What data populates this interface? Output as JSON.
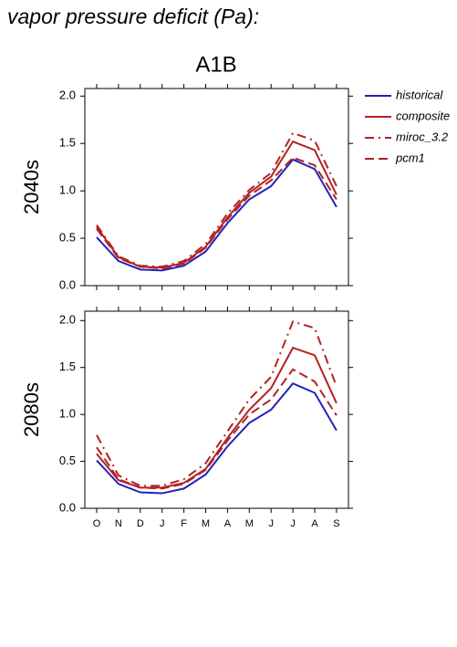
{
  "title": "vapor pressure deficit (Pa):",
  "subtitle": "A1B",
  "chart_data": [
    {
      "type": "line",
      "y_label": "2040s",
      "categories": [
        null,
        null,
        null,
        null,
        null,
        null,
        null,
        null,
        null,
        null,
        null,
        null
      ],
      "ylim": [
        0,
        2.08
      ],
      "yticks": [
        {
          "value": 0,
          "label": "0.0"
        },
        0.5,
        {
          "value": 1,
          "label": "1.0"
        },
        1.5,
        {
          "value": 2,
          "label": "2.0"
        }
      ],
      "legend": "right",
      "series": [
        {
          "name": "historical",
          "color": "#2222bb",
          "dash": "solid",
          "values": [
            0.51,
            0.26,
            0.17,
            0.16,
            0.21,
            0.36,
            0.66,
            0.91,
            1.05,
            1.33,
            1.23,
            0.83
          ]
        },
        {
          "name": "composite",
          "color": "#b22222",
          "dash": "solid",
          "values": [
            0.62,
            0.3,
            0.2,
            0.19,
            0.24,
            0.41,
            0.72,
            0.98,
            1.15,
            1.52,
            1.43,
            0.96
          ]
        },
        {
          "name": "miroc_3.2",
          "color": "#b22222",
          "dash": "dashdot",
          "values": [
            0.64,
            0.31,
            0.21,
            0.2,
            0.26,
            0.44,
            0.76,
            1.01,
            1.19,
            1.61,
            1.53,
            1.05
          ]
        },
        {
          "name": "pcm1",
          "color": "#b22222",
          "dash": "dashed",
          "values": [
            0.6,
            0.29,
            0.2,
            0.18,
            0.23,
            0.4,
            0.7,
            0.95,
            1.11,
            1.35,
            1.27,
            0.91
          ]
        }
      ]
    },
    {
      "type": "line",
      "y_label": "2080s",
      "categories": [
        "O",
        "N",
        "D",
        "J",
        "F",
        "M",
        "A",
        "M",
        "J",
        "J",
        "A",
        "S"
      ],
      "ylim": [
        0,
        2.1
      ],
      "yticks": [
        {
          "value": 0,
          "label": "0.0"
        },
        0.5,
        {
          "value": 1,
          "label": "1.0"
        },
        1.5,
        {
          "value": 2,
          "label": "2.0"
        }
      ],
      "series": [
        {
          "color": "#2222bb",
          "dash": "solid",
          "values": [
            0.51,
            0.26,
            0.17,
            0.16,
            0.21,
            0.36,
            0.66,
            0.91,
            1.05,
            1.33,
            1.23,
            0.83
          ]
        },
        {
          "color": "#b22222",
          "dash": "solid",
          "values": [
            0.58,
            0.3,
            0.22,
            0.22,
            0.27,
            0.42,
            0.75,
            1.05,
            1.28,
            1.71,
            1.63,
            1.12
          ]
        },
        {
          "color": "#b22222",
          "dash": "dashdot",
          "values": [
            0.78,
            0.35,
            0.24,
            0.24,
            0.31,
            0.48,
            0.82,
            1.16,
            1.4,
            1.99,
            1.92,
            1.3
          ]
        },
        {
          "color": "#b22222",
          "dash": "dashed",
          "values": [
            0.65,
            0.31,
            0.22,
            0.21,
            0.26,
            0.41,
            0.72,
            1.0,
            1.16,
            1.48,
            1.35,
            0.99
          ]
        }
      ]
    }
  ]
}
